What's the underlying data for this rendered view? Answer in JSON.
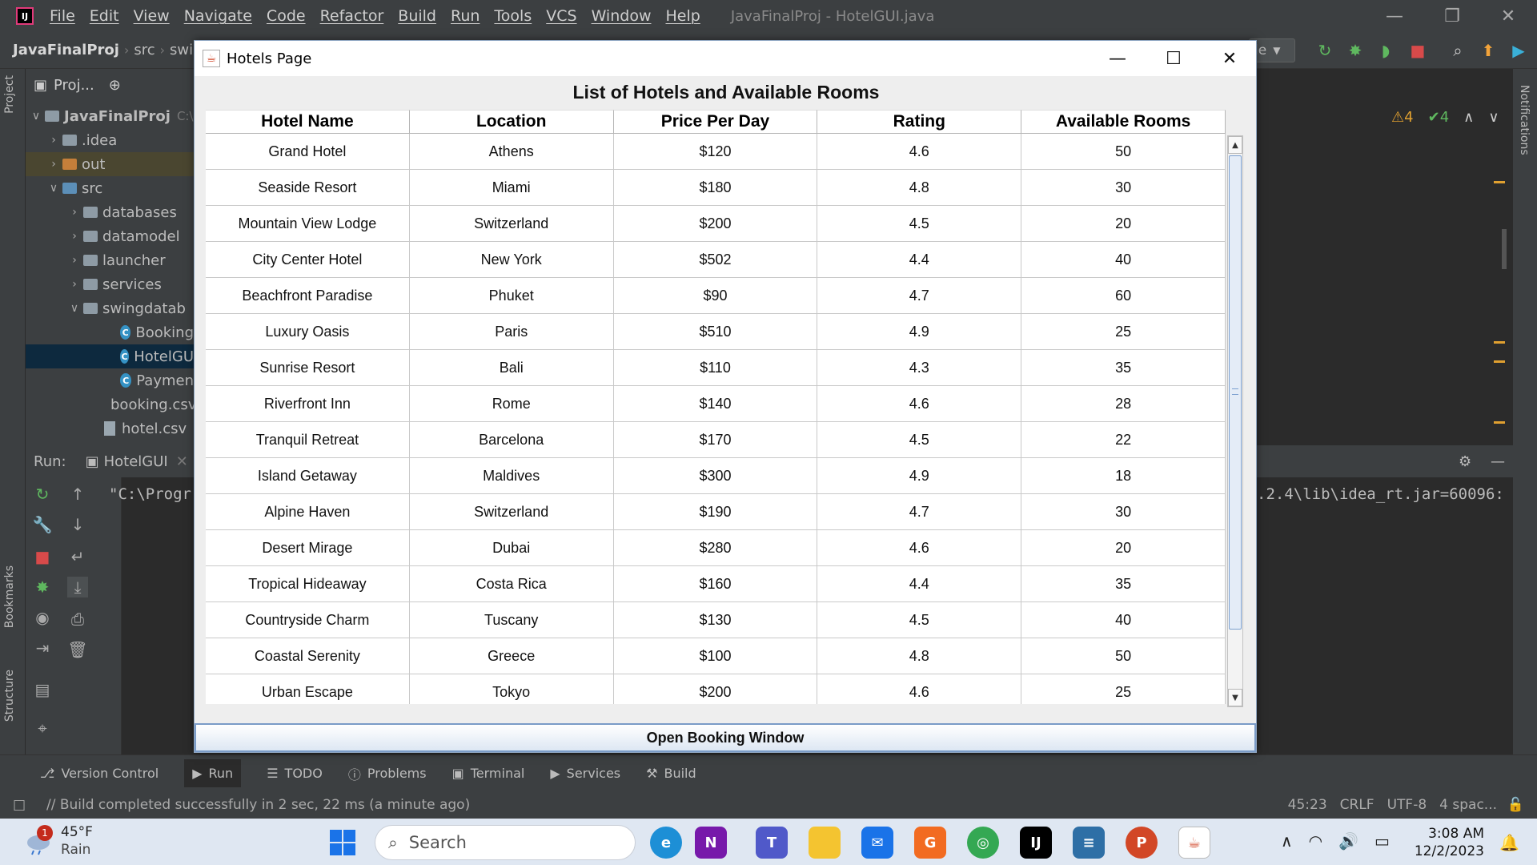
{
  "ide": {
    "menu": [
      "File",
      "Edit",
      "View",
      "Navigate",
      "Code",
      "Refactor",
      "Build",
      "Run",
      "Tools",
      "VCS",
      "Window",
      "Help"
    ],
    "window_title": "JavaFinalProj - HotelGUI.java",
    "breadcrumb": [
      "JavaFinalProj",
      "src",
      "swing"
    ],
    "run_config": "le",
    "inspection_warnings": "4",
    "inspection_ok": "4",
    "project_header": "Proj...",
    "project_tree": [
      {
        "label": "JavaFinalProj",
        "suffix": "C:\\",
        "type": "module"
      },
      {
        "label": ".idea",
        "type": "folder"
      },
      {
        "label": "out",
        "type": "folder-excluded"
      },
      {
        "label": "src",
        "type": "folder-source"
      },
      {
        "label": "databases",
        "type": "package"
      },
      {
        "label": "datamodel",
        "type": "package"
      },
      {
        "label": "launcher",
        "type": "package"
      },
      {
        "label": "services",
        "type": "package"
      },
      {
        "label": "swingdatab",
        "type": "package"
      },
      {
        "label": "Booking",
        "type": "class"
      },
      {
        "label": "HotelGU",
        "type": "class"
      },
      {
        "label": "Paymen",
        "type": "class"
      },
      {
        "label": "booking.csv",
        "type": "file"
      },
      {
        "label": "hotel.csv",
        "type": "file"
      }
    ],
    "side_tabs": {
      "project": "Project",
      "bookmarks": "Bookmarks",
      "structure": "Structure",
      "notifications": "Notifications"
    },
    "run_panel": {
      "label": "Run:",
      "tab": "HotelGUI",
      "console_left": "\"C:\\Progr",
      "console_right": ".2.4\\lib\\idea_rt.jar=60096:"
    },
    "bottom_tabs": [
      "Version Control",
      "Run",
      "TODO",
      "Problems",
      "Terminal",
      "Services",
      "Build"
    ],
    "status": {
      "message": "// Build completed successfully in 2 sec, 22 ms (a minute ago)",
      "position": "45:23",
      "line_sep": "CRLF",
      "encoding": "UTF-8",
      "indent": "4 spac..."
    }
  },
  "hotels_window": {
    "title": "Hotels Page",
    "heading": "List of Hotels and Available Rooms",
    "columns": [
      "Hotel Name",
      "Location",
      "Price Per Day",
      "Rating",
      "Available Rooms"
    ],
    "rows": [
      [
        "Grand Hotel",
        "Athens",
        "$120",
        "4.6",
        "50"
      ],
      [
        "Seaside Resort",
        "Miami",
        "$180",
        "4.8",
        "30"
      ],
      [
        "Mountain View Lodge",
        "Switzerland",
        "$200",
        "4.5",
        "20"
      ],
      [
        "City Center Hotel",
        "New York",
        "$502",
        "4.4",
        "40"
      ],
      [
        "Beachfront Paradise",
        "Phuket",
        "$90",
        "4.7",
        "60"
      ],
      [
        "Luxury Oasis",
        "Paris",
        "$510",
        "4.9",
        "25"
      ],
      [
        "Sunrise Resort",
        "Bali",
        "$110",
        "4.3",
        "35"
      ],
      [
        "Riverfront Inn",
        "Rome",
        "$140",
        "4.6",
        "28"
      ],
      [
        "Tranquil Retreat",
        "Barcelona",
        "$170",
        "4.5",
        "22"
      ],
      [
        "Island Getaway",
        "Maldives",
        "$300",
        "4.9",
        "18"
      ],
      [
        "Alpine Haven",
        "Switzerland",
        "$190",
        "4.7",
        "30"
      ],
      [
        "Desert Mirage",
        "Dubai",
        "$280",
        "4.6",
        "20"
      ],
      [
        "Tropical Hideaway",
        "Costa Rica",
        "$160",
        "4.4",
        "35"
      ],
      [
        "Countryside Charm",
        "Tuscany",
        "$130",
        "4.5",
        "40"
      ],
      [
        "Coastal Serenity",
        "Greece",
        "$100",
        "4.8",
        "50"
      ],
      [
        "Urban Escape",
        "Tokyo",
        "$200",
        "4.6",
        "25"
      ]
    ],
    "button_label": "Open Booking Window"
  },
  "taskbar": {
    "weather_temp": "45°F",
    "weather_desc": "Rain",
    "weather_badge": "1",
    "search_placeholder": "Search",
    "time": "3:08 AM",
    "date": "12/2/2023"
  },
  "colors": {
    "ide_bg": "#2b2b2b",
    "ide_panel": "#3c3f41",
    "selection": "#0d293e",
    "window_border": "#7a9bc7"
  }
}
